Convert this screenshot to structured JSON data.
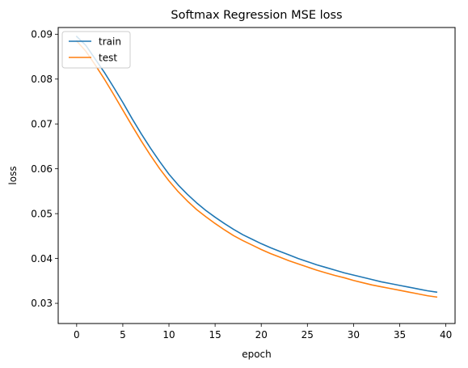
{
  "chart_data": {
    "type": "line",
    "title": "Softmax Regression MSE loss",
    "xlabel": "epoch",
    "ylabel": "loss",
    "xlim": [
      -2,
      41
    ],
    "ylim": [
      0.0255,
      0.0915
    ],
    "xticks": [
      0,
      5,
      10,
      15,
      20,
      25,
      30,
      35,
      40
    ],
    "yticks": [
      0.03,
      0.04,
      0.05,
      0.06,
      0.07,
      0.08,
      0.09
    ],
    "grid": false,
    "legend_position": "top-left",
    "x": [
      0,
      1,
      2,
      3,
      4,
      5,
      6,
      7,
      8,
      9,
      10,
      11,
      12,
      13,
      14,
      15,
      16,
      17,
      18,
      19,
      20,
      21,
      22,
      23,
      24,
      25,
      26,
      27,
      28,
      29,
      30,
      31,
      32,
      33,
      34,
      35,
      36,
      37,
      38,
      39
    ],
    "series": [
      {
        "name": "train",
        "color": "#1f77b4",
        "values": [
          0.0895,
          0.0875,
          0.0845,
          0.0815,
          0.0782,
          0.0748,
          0.0712,
          0.0678,
          0.0646,
          0.0616,
          0.0588,
          0.0564,
          0.0543,
          0.0524,
          0.0507,
          0.0492,
          0.0478,
          0.0465,
          0.0453,
          0.0443,
          0.0433,
          0.0424,
          0.0416,
          0.0408,
          0.04,
          0.0393,
          0.0386,
          0.038,
          0.0374,
          0.0368,
          0.0363,
          0.0358,
          0.0353,
          0.0348,
          0.0344,
          0.034,
          0.0336,
          0.0332,
          0.0328,
          0.0325
        ]
      },
      {
        "name": "test",
        "color": "#ff7f0e",
        "values": [
          0.0885,
          0.0862,
          0.0832,
          0.08,
          0.0766,
          0.0731,
          0.0696,
          0.0662,
          0.063,
          0.06,
          0.0573,
          0.0549,
          0.0528,
          0.0509,
          0.0493,
          0.0478,
          0.0464,
          0.0451,
          0.044,
          0.043,
          0.042,
          0.0411,
          0.0403,
          0.0395,
          0.0388,
          0.0381,
          0.0374,
          0.0368,
          0.0362,
          0.0357,
          0.0351,
          0.0346,
          0.0341,
          0.0337,
          0.0333,
          0.0329,
          0.0325,
          0.0321,
          0.0317,
          0.0314
        ]
      }
    ]
  }
}
